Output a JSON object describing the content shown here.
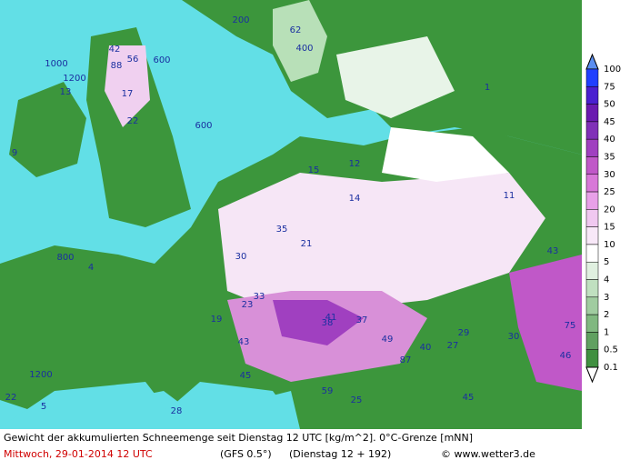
{
  "caption": {
    "line1": "Gewicht der akkumulierten Schneemenge seit Dienstag 12 UTC [kg/m^2]. 0°C-Grenze [mNN]",
    "date": "Mittwoch, 29-01-2014  12 UTC",
    "model": "(GFS 0.5°)",
    "run": "(Dienstag 12 + 192)",
    "credit": "© www.wetter3.de"
  },
  "legend": {
    "levels": [
      100,
      75,
      50,
      45,
      40,
      35,
      30,
      25,
      20,
      15,
      10,
      5,
      4,
      3,
      2,
      1,
      0.5,
      0.1
    ],
    "colors": [
      "#5b8ef0",
      "#2040ff",
      "#4a20d0",
      "#6a1ab0",
      "#8030b8",
      "#a040c0",
      "#c058c8",
      "#d878d8",
      "#e8a0e8",
      "#f0c8f0",
      "#f8e8f8",
      "#ffffff",
      "#e0f0e0",
      "#c0e0c0",
      "#a0cca0",
      "#80b880",
      "#60a060",
      "#409040",
      "#ffffff"
    ]
  },
  "map_labels": [
    "200",
    "62",
    "400",
    "600",
    "1000",
    "1200",
    "42",
    "88",
    "56",
    "17",
    "22",
    "13",
    "600",
    "9",
    "4",
    "800",
    "15",
    "12",
    "14",
    "35",
    "21",
    "30",
    "33",
    "23",
    "19",
    "43",
    "45",
    "38",
    "41",
    "37",
    "49",
    "87",
    "40",
    "27",
    "29",
    "59",
    "25",
    "28",
    "5",
    "1",
    "11",
    "43",
    "75",
    "46",
    "30",
    "45",
    "22",
    "1200"
  ]
}
